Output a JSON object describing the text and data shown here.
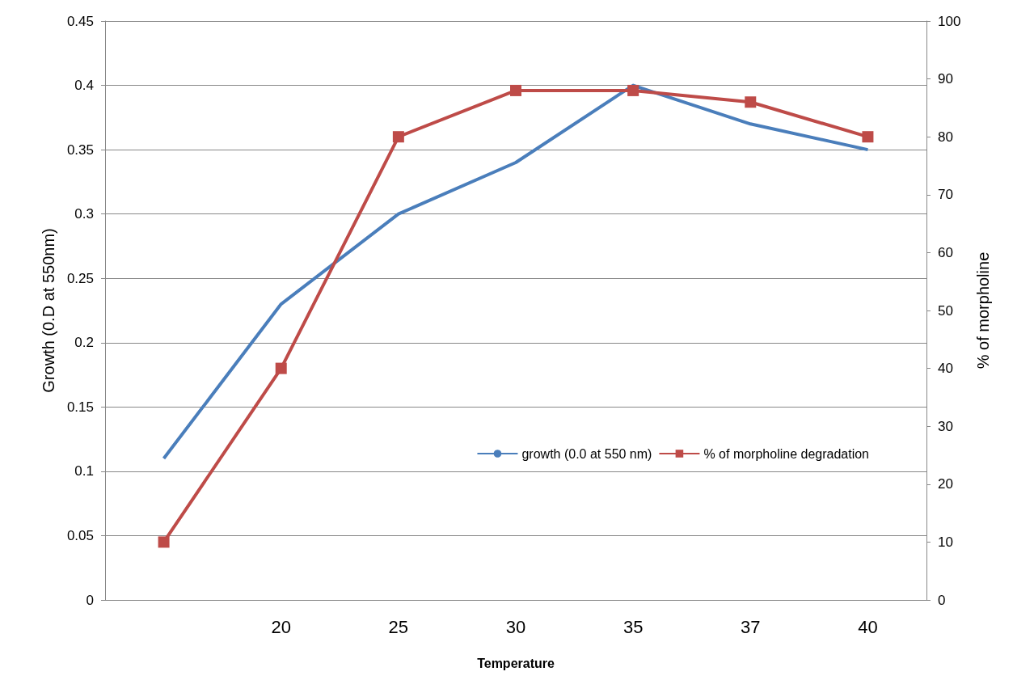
{
  "chart_data": {
    "type": "line",
    "xlabel": "Temperature",
    "ylabel": "Growth (0.D at 550nm)",
    "y2label": "% of morpholine",
    "categories": [
      null,
      "20",
      "25",
      "30",
      "35",
      "37",
      "40"
    ],
    "series": [
      {
        "name": "growth (0.0 at 550 nm)",
        "color": "#4a7ebb",
        "marker": "none",
        "values": [
          0.11,
          0.23,
          0.3,
          0.34,
          0.4,
          0.37,
          0.35
        ]
      },
      {
        "name": "% of morpholine degradation",
        "color": "#be4b48",
        "marker": "square",
        "axis": "y2",
        "values": [
          10,
          40,
          80,
          88,
          88,
          86,
          80
        ]
      }
    ],
    "ylim": [
      0,
      0.45
    ],
    "yticks": [
      0,
      0.05,
      0.1,
      0.15,
      0.2,
      0.25,
      0.3,
      0.35,
      0.4,
      0.45
    ],
    "y2lim": [
      0,
      100
    ],
    "y2ticks": [
      0,
      10,
      20,
      30,
      40,
      50,
      60,
      70,
      80,
      90,
      100
    ],
    "grid": "y",
    "legend": "right",
    "line_style": "solid"
  }
}
